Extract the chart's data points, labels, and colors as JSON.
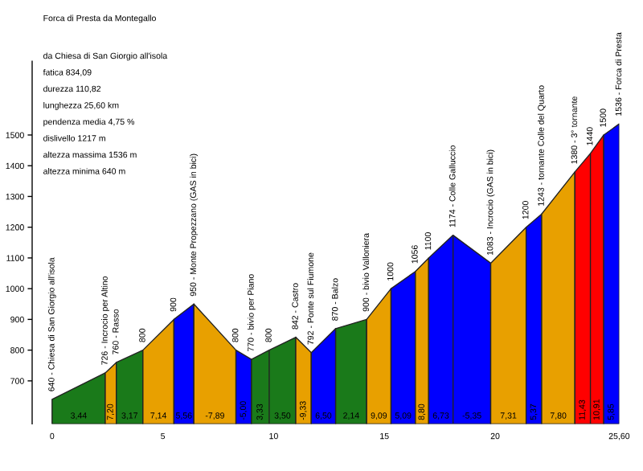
{
  "chart_data": {
    "type": "area",
    "title": "Forca di Presta da Montegallo",
    "subtitle": "da Chiesa di San Giorgio all'isola",
    "annotations": [
      "fatica 834,09",
      "durezza 110,82",
      "lunghezza 25,60 km",
      "pendenza media 4,75 %",
      "dislivello 1217 m",
      "altezza massima 1536 m",
      "altezza minima 640 m",
      "3,44",
      "7,20",
      "3,17",
      "7,14",
      "5,56",
      "-7,89",
      "-5,00",
      "3,33",
      "3,50",
      "-9,33",
      "6,50",
      "2,14",
      "9,09",
      "5,09",
      "8,80",
      "6,73",
      "-5,35",
      "7,31",
      "5,37",
      "7,80",
      "11,43",
      "10,91",
      "5,85"
    ],
    "series": [
      {
        "x": [
          0,
          2.4
        ],
        "values": [
          640,
          726
        ],
        "color": "#1a7a1a",
        "value_labels": [
          "640 - Chiesa di San Giorgio all'isola",
          "726 - Incrocio per Altino"
        ]
      },
      {
        "x": [
          2.4,
          2.9
        ],
        "values": [
          726,
          760
        ],
        "color": "#e8a000",
        "value_labels": [
          null,
          "760 - Rasso"
        ]
      },
      {
        "x": [
          2.9,
          4.1
        ],
        "values": [
          760,
          800
        ],
        "color": "#1a7a1a",
        "value_labels": [
          null,
          "800"
        ]
      },
      {
        "x": [
          4.1,
          5.5
        ],
        "values": [
          800,
          900
        ],
        "color": "#e8a000",
        "value_labels": [
          null,
          "900"
        ]
      },
      {
        "x": [
          5.5,
          6.4
        ],
        "values": [
          900,
          950
        ],
        "color": "#0000ff",
        "value_labels": [
          null,
          "950 - Monte Propezzano (GAS in bici)"
        ]
      },
      {
        "x": [
          6.4,
          8.3
        ],
        "values": [
          950,
          800
        ],
        "color": "#e8a000",
        "value_labels": [
          null,
          "800"
        ]
      },
      {
        "x": [
          8.3,
          9.0
        ],
        "values": [
          800,
          770
        ],
        "color": "#0000ff",
        "value_labels": [
          null,
          "770 - bivio per Piano"
        ]
      },
      {
        "x": [
          9.0,
          9.8,
          11.0
        ],
        "values": [
          770,
          800,
          842
        ],
        "color": "#1a7a1a",
        "value_labels": [
          null,
          "800",
          "842 - Castro"
        ]
      },
      {
        "x": [
          11.0,
          11.7
        ],
        "values": [
          842,
          792
        ],
        "color": "#e8a000",
        "value_labels": [
          null,
          "792 - Ponte sul Fiumone"
        ]
      },
      {
        "x": [
          11.7,
          12.8
        ],
        "values": [
          792,
          870
        ],
        "color": "#0000ff",
        "value_labels": [
          null,
          "870 - Balzo"
        ]
      },
      {
        "x": [
          12.8,
          14.2
        ],
        "values": [
          870,
          900
        ],
        "color": "#1a7a1a",
        "value_labels": [
          null,
          "900 - bivio Valloniera"
        ]
      },
      {
        "x": [
          14.2,
          15.3
        ],
        "values": [
          900,
          1000
        ],
        "color": "#e8a000",
        "value_labels": [
          null,
          "1000"
        ]
      },
      {
        "x": [
          15.3,
          16.4
        ],
        "values": [
          1000,
          1056
        ],
        "color": "#0000ff",
        "value_labels": [
          null,
          "1056"
        ]
      },
      {
        "x": [
          16.4,
          17.0
        ],
        "values": [
          1056,
          1100
        ],
        "color": "#e8a000",
        "value_labels": [
          null,
          "1100"
        ]
      },
      {
        "x": [
          17.0,
          18.1,
          19.8
        ],
        "values": [
          1100,
          1174,
          1083
        ],
        "color": "#0000ff",
        "value_labels": [
          null,
          "1174 - Colle Galluccio",
          "1083 - Incrocio (GAS in bici)"
        ]
      },
      {
        "x": [
          19.8,
          21.4
        ],
        "values": [
          1083,
          1200
        ],
        "color": "#e8a000",
        "value_labels": [
          null,
          "1200"
        ]
      },
      {
        "x": [
          21.4,
          22.1
        ],
        "values": [
          1200,
          1243
        ],
        "color": "#0000ff",
        "value_labels": [
          null,
          "1243 - tornante Colle del Quarto"
        ]
      },
      {
        "x": [
          22.1,
          23.6
        ],
        "values": [
          1243,
          1380
        ],
        "color": "#e8a000",
        "value_labels": [
          null,
          "1380 - 3° tornante"
        ]
      },
      {
        "x": [
          23.6,
          24.3,
          24.9
        ],
        "values": [
          1380,
          1440,
          1500
        ],
        "color": "#ff0000",
        "value_labels": [
          null,
          "1440",
          "1500"
        ]
      },
      {
        "x": [
          24.9,
          25.6
        ],
        "values": [
          1500,
          1536
        ],
        "color": "#0000ff",
        "value_labels": [
          null,
          "1536 - Forca di Presta"
        ]
      }
    ],
    "xlim": [
      -0.9,
      25.6
    ],
    "ylim": [
      560,
      1740
    ],
    "xticks": [
      0,
      5,
      10,
      15,
      20,
      {
        "value": 25.6,
        "label": "25,60"
      }
    ],
    "yticks": [
      700,
      800,
      900,
      1000,
      1100,
      1200,
      1300,
      1400,
      1500
    ],
    "grid": false,
    "legend": false
  }
}
